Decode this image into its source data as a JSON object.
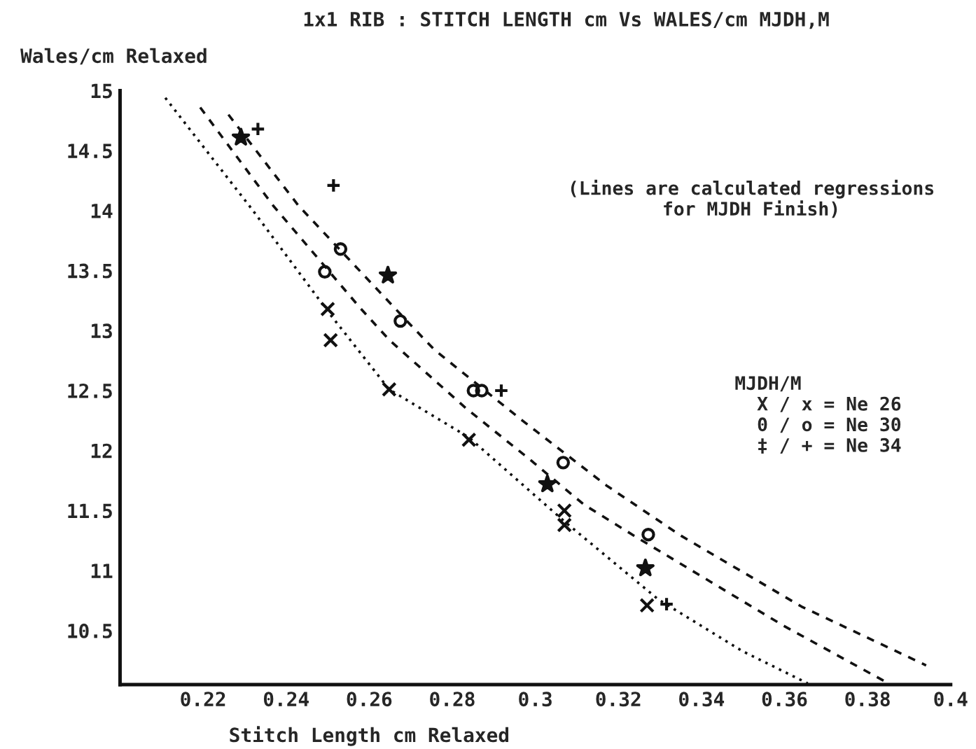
{
  "chart_data": {
    "type": "scatter",
    "title": "1x1 RIB : STITCH LENGTH cm Vs WALES/cm MJDH,M",
    "xlabel": "Stitch Length cm Relaxed",
    "ylabel": "Wales/cm Relaxed",
    "xlim": [
      0.2,
      0.4
    ],
    "xticks": [
      0.22,
      0.24,
      0.26,
      0.28,
      0.3,
      0.32,
      0.34,
      0.36,
      0.38,
      0.4
    ],
    "ylim": [
      10.05,
      15
    ],
    "yticks": [
      10.5,
      11,
      11.5,
      12,
      12.5,
      13,
      13.5,
      14,
      14.5,
      15
    ],
    "grid": false,
    "annotations": [
      "(Lines are calculated regressions\nfor MJDH Finish)",
      "MJDH/M\n  X / x = Ne 26\n  0 / o = Ne 30\n  ‡ / + = Ne 34"
    ],
    "series": [
      {
        "marker": "cross",
        "color": "#111111",
        "x": [
          0.2507,
          0.2648,
          0.307,
          0.307
        ],
        "values": [
          12.92,
          12.51,
          11.5,
          11.38
        ]
      },
      {
        "marker": "cross",
        "color": "#111111",
        "x": [
          0.25,
          0.284,
          0.3269
        ],
        "values": [
          13.18,
          12.09,
          10.71
        ]
      },
      {
        "marker": "circle",
        "color": "#111111",
        "x": [
          0.2493,
          0.2871,
          0.3067,
          0.3272
        ],
        "values": [
          13.49,
          12.5,
          11.9,
          11.3
        ]
      },
      {
        "marker": "circle",
        "color": "#111111",
        "x": [
          0.2531,
          0.2675,
          0.2851
        ],
        "values": [
          13.68,
          13.08,
          12.5
        ]
      },
      {
        "marker": "star",
        "color": "#111111",
        "x": [
          0.2291,
          0.2645,
          0.3029,
          0.3265
        ],
        "values": [
          14.61,
          13.46,
          11.72,
          11.02
        ]
      },
      {
        "marker": "plus",
        "color": "#111111",
        "x": [
          0.2332,
          0.2514,
          0.2918,
          0.3316
        ],
        "values": [
          14.68,
          14.21,
          12.5,
          10.72
        ]
      },
      {
        "type": "line",
        "line_style": "dotted",
        "color": "#111111",
        "x": [
          0.2109,
          0.2318,
          0.2507,
          0.2648,
          0.284,
          0.307,
          0.3296,
          0.3498,
          0.3656
        ],
        "values": [
          14.94,
          14.01,
          13.13,
          12.51,
          12.11,
          11.41,
          10.76,
          10.33,
          10.06
        ]
      },
      {
        "type": "line",
        "line_style": "dashed",
        "color": "#111111",
        "x": [
          0.2193,
          0.2369,
          0.2578,
          0.2649,
          0.2834,
          0.2982,
          0.3117,
          0.3238,
          0.3598,
          0.3845
        ],
        "values": [
          14.86,
          14.04,
          13.19,
          12.92,
          12.35,
          11.94,
          11.55,
          11.29,
          10.54,
          10.07
        ]
      },
      {
        "type": "line",
        "line_style": "dashed",
        "color": "#111111",
        "x": [
          0.2261,
          0.243,
          0.2699,
          0.2757,
          0.2969,
          0.3171,
          0.3351,
          0.3641,
          0.3941
        ],
        "values": [
          14.8,
          14.04,
          13.05,
          12.84,
          12.25,
          11.71,
          11.29,
          10.7,
          10.21
        ]
      }
    ]
  }
}
